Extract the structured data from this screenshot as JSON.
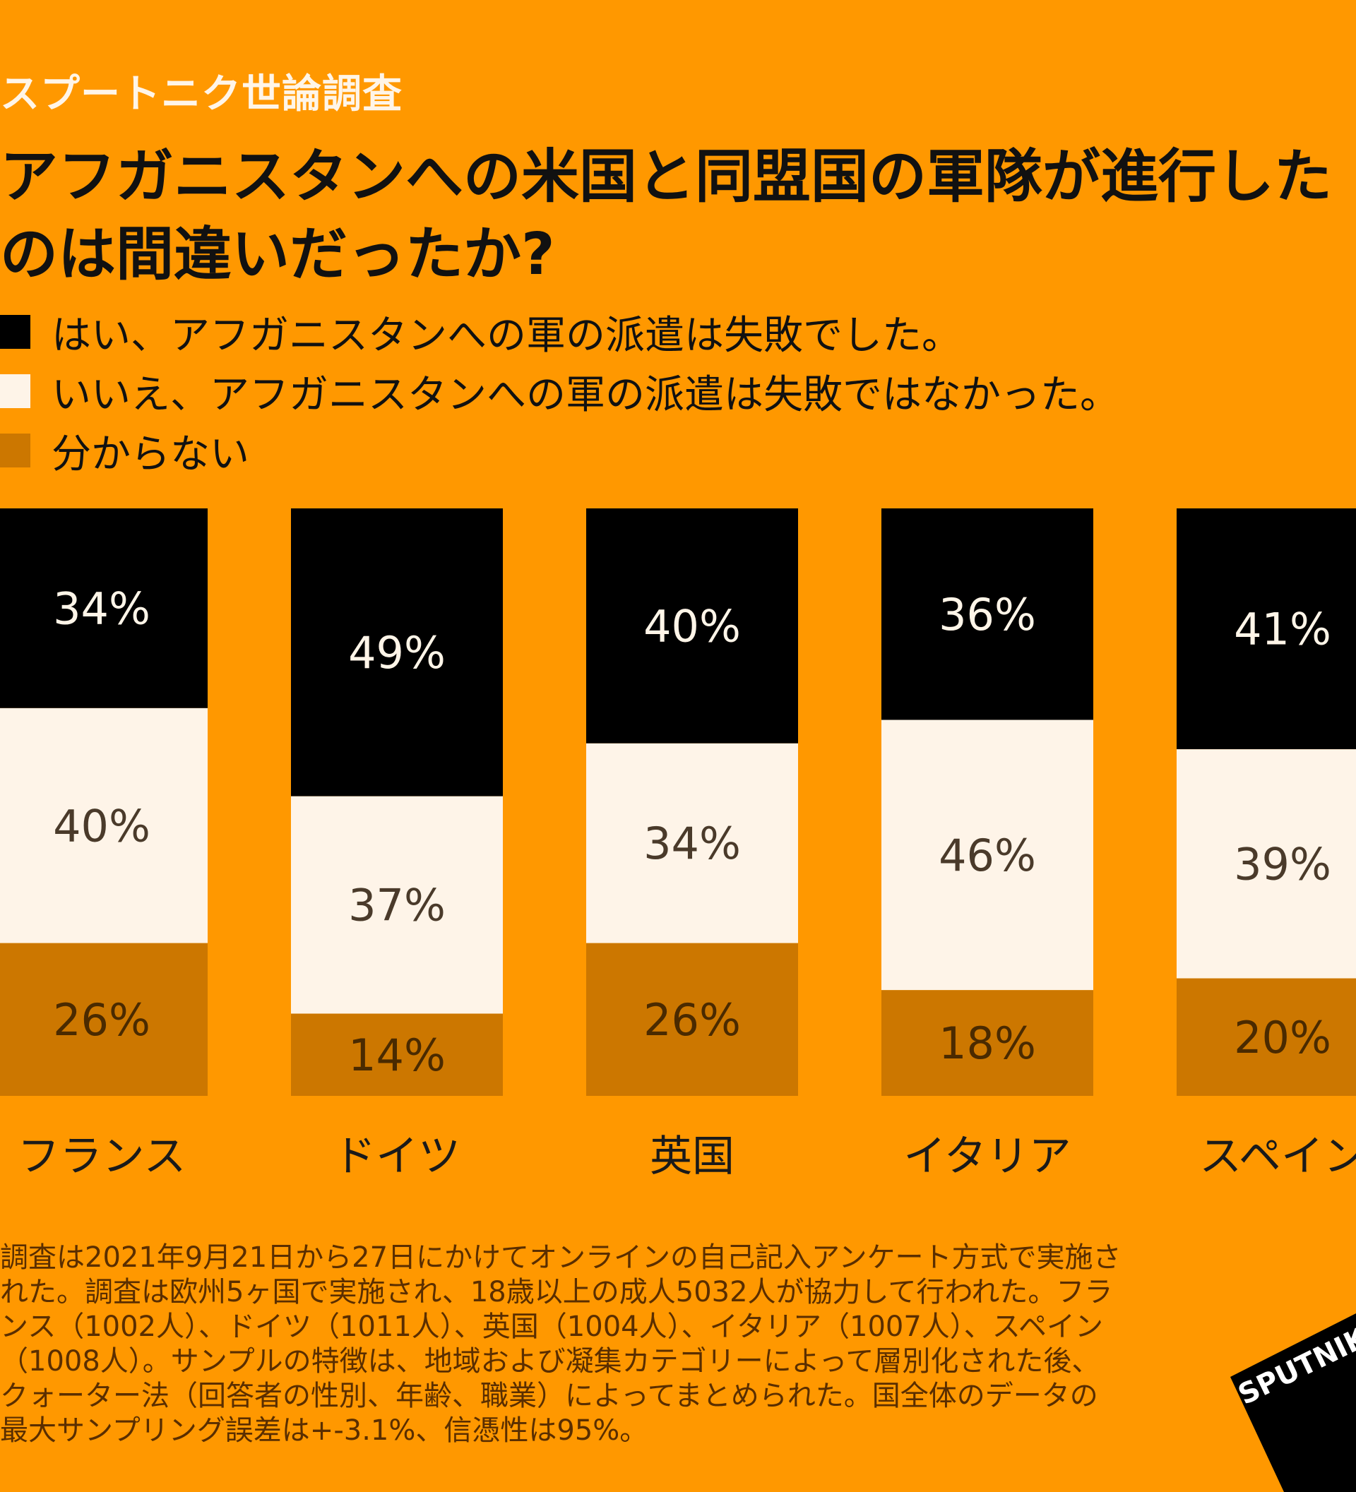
{
  "header": {
    "kicker": "スプートニク世論調査",
    "title_line1": "アフガニスタンへの米国と同盟国の軍隊が進行した",
    "title_line2": "のは間違いだったか?"
  },
  "chart_data": {
    "type": "bar",
    "stacked": true,
    "normalized": true,
    "categories": [
      "フランス",
      "ドイツ",
      "英国",
      "イタリア",
      "スペイン"
    ],
    "series": [
      {
        "name": "はい、アフガニスタンへの軍の派遣は失敗でした。",
        "values": [
          34,
          49,
          40,
          36,
          41
        ],
        "color": "#000000",
        "label_color": "#FFF5E8"
      },
      {
        "name": "いいえ、アフガニスタンへの軍の派遣は失敗ではなかった。",
        "values": [
          40,
          37,
          34,
          46,
          39
        ],
        "color": "#FEF4E8",
        "label_color": "#4A3A2A"
      },
      {
        "name": "分からない",
        "values": [
          26,
          14,
          26,
          18,
          20
        ],
        "color": "#CC7700",
        "label_color": "#4A2A00"
      }
    ],
    "value_suffix": "%",
    "legend_position": "top-left",
    "grid": false
  },
  "footnote": "調査は2021年9月21日から27日にかけてオンラインの自己記入アンケート方式で実施された。調査は欧州5ヶ国で実施され、18歳以上の成人5032人が協力して行われた。フランス（1002人）、ドイツ（1011人）、英国（1004人）、イタリア（1007人）、スペイン（1008人）。サンプルの特徴は、地域および凝集カテゴリーによって層別化された後、クォーター法（回答者の性別、年齢、職業）によってまとめられた。国全体のデータの最大サンプリング誤差は+-3.1%、信憑性は95%。",
  "logo": {
    "text": "SPUTNIK",
    "color": "#000000",
    "text_color": "#FFFFFF"
  },
  "colors": {
    "background": "#FF9800"
  }
}
